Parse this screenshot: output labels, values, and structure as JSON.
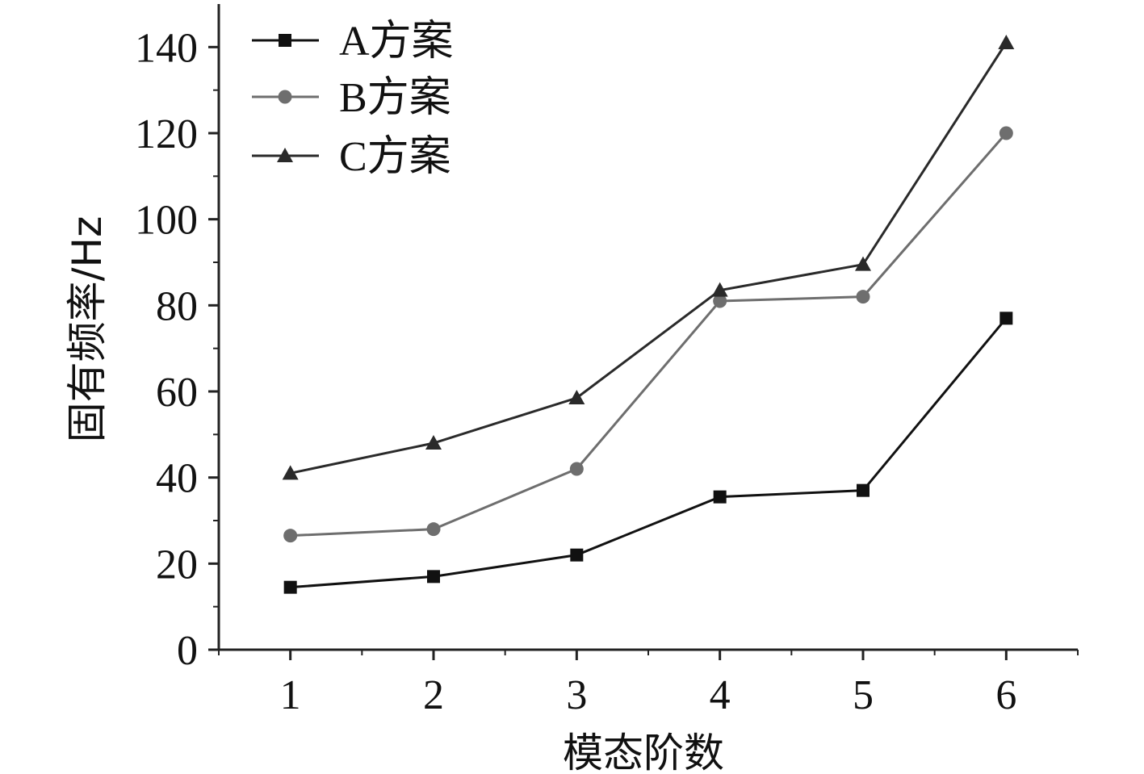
{
  "chart_data": {
    "type": "line",
    "title": "",
    "xlabel": "模态阶数",
    "ylabel": "固有频率/Hz",
    "x": [
      1,
      2,
      3,
      4,
      5,
      6
    ],
    "xticks": [
      "1",
      "2",
      "3",
      "4",
      "5",
      "6"
    ],
    "yticks": [
      "0",
      "20",
      "40",
      "60",
      "80",
      "100",
      "120",
      "140"
    ],
    "xlim": [
      0.5,
      6.5
    ],
    "ylim": [
      0,
      150
    ],
    "grid": false,
    "legend_position": "top-left",
    "series": [
      {
        "name": "A方案",
        "marker": "square",
        "color": "#111111",
        "values": [
          14.5,
          17,
          22,
          35.5,
          37,
          77
        ]
      },
      {
        "name": "B方案",
        "marker": "circle",
        "color": "#6e6e6e",
        "values": [
          26.5,
          28,
          42,
          81,
          82,
          120
        ]
      },
      {
        "name": "C方案",
        "marker": "triangle",
        "color": "#2a2a2a",
        "values": [
          41,
          48,
          58.5,
          83.5,
          89.5,
          141
        ]
      }
    ]
  }
}
